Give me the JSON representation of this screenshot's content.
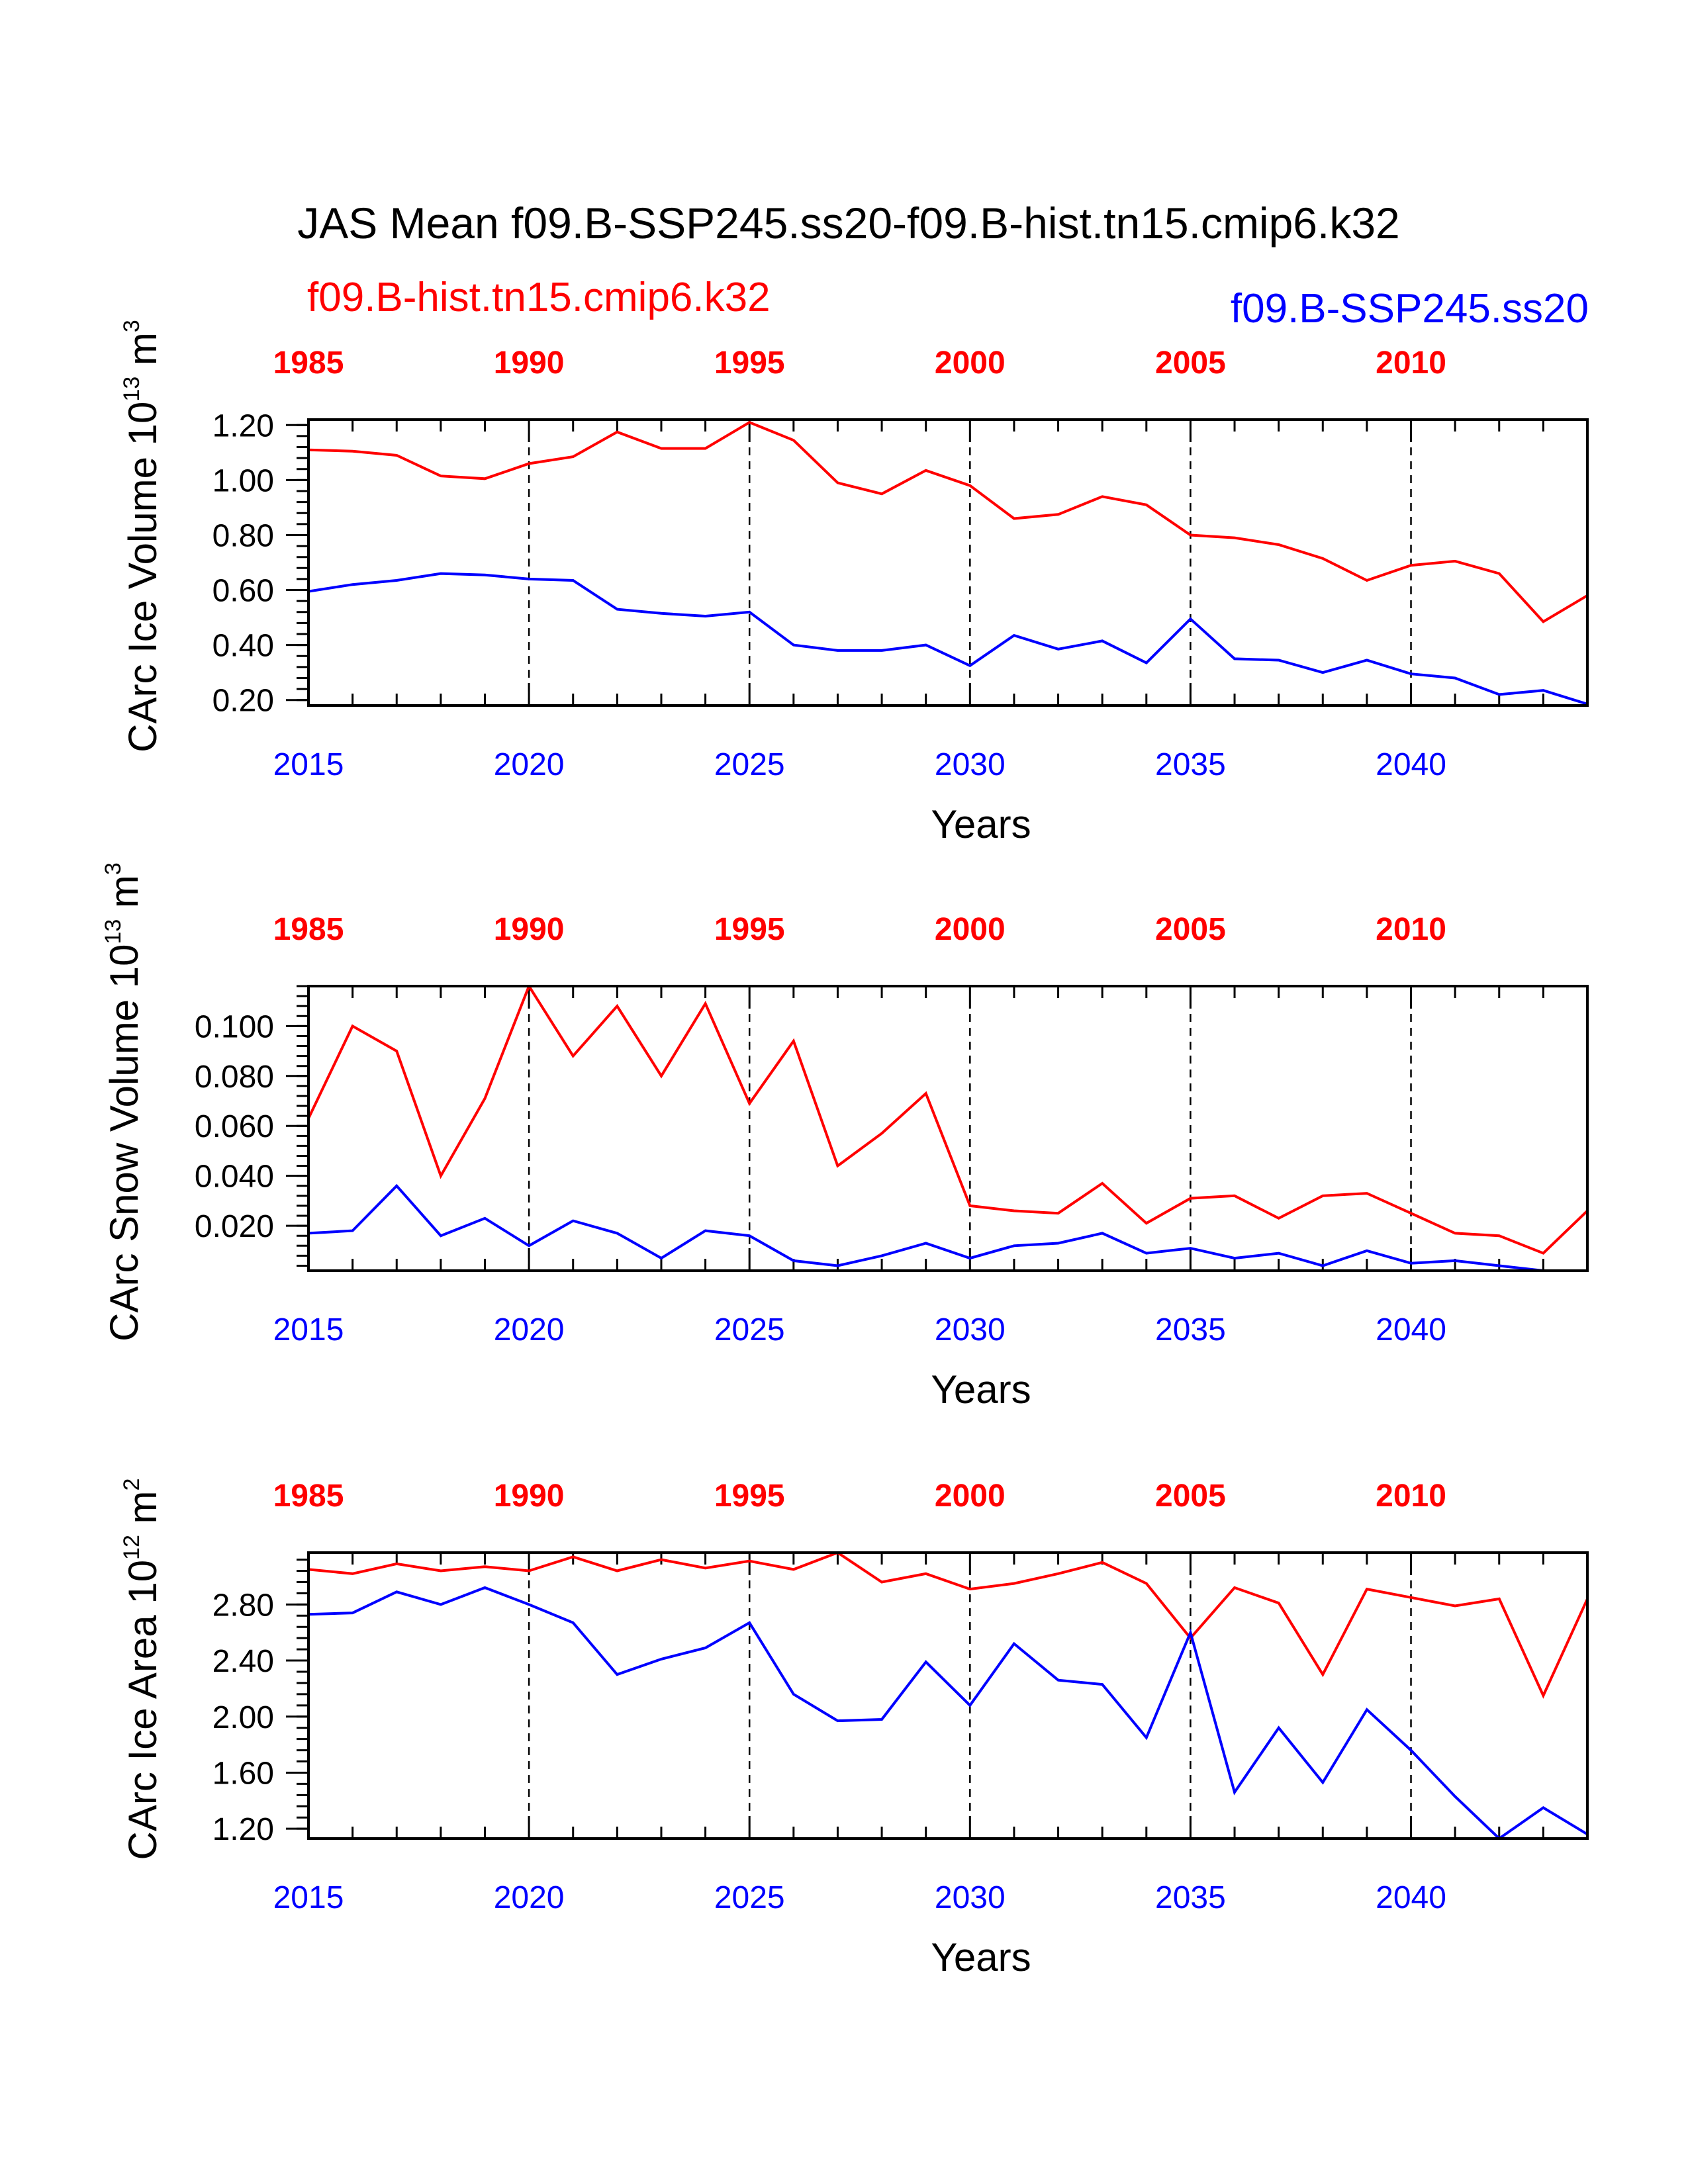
{
  "title": "JAS Mean f09.B-SSP245.ss20-f09.B-hist.tn15.cmip6.k32",
  "legend": {
    "red": "f09.B-hist.tn15.cmip6.k32",
    "blue": "f09.B-SSP245.ss20"
  },
  "colors": {
    "red": "#ff0000",
    "blue": "#0000ff",
    "axis": "#000000"
  },
  "chart_data": [
    {
      "type": "line",
      "ylabel": {
        "text": "CArc Ice Volume 10",
        "exp": "13",
        "unit": " m",
        "unit_exp": "3"
      },
      "xlabel": "Years",
      "xlim": [
        2015,
        2044
      ],
      "ylim": [
        0.18,
        1.22
      ],
      "yticks": [
        0.2,
        0.4,
        0.6,
        0.8,
        1.0,
        1.2
      ],
      "ytick_labels": [
        "0.20",
        "0.40",
        "0.60",
        "0.80",
        "1.00",
        "1.20"
      ],
      "yminor": 0.04,
      "bottom_ticks": [
        "2015",
        "2020",
        "2025",
        "2030",
        "2035",
        "2040"
      ],
      "top_ticks": [
        "1985",
        "1990",
        "1995",
        "2000",
        "2005",
        "2010"
      ],
      "grid": "dashed-vertical",
      "x": [
        2015,
        2016,
        2017,
        2018,
        2019,
        2020,
        2021,
        2022,
        2023,
        2024,
        2025,
        2026,
        2027,
        2028,
        2029,
        2030,
        2031,
        2032,
        2033,
        2034,
        2035,
        2036,
        2037,
        2038,
        2039,
        2040,
        2041,
        2042,
        2043,
        2044
      ],
      "series": [
        {
          "color": "red",
          "values": [
            1.11,
            1.105,
            1.09,
            1.015,
            1.005,
            1.06,
            1.085,
            1.175,
            1.115,
            1.115,
            1.21,
            1.145,
            0.99,
            0.95,
            1.035,
            0.98,
            0.86,
            0.875,
            0.94,
            0.91,
            0.8,
            0.79,
            0.765,
            0.715,
            0.635,
            0.69,
            0.705,
            0.66,
            0.485,
            0.58
          ]
        },
        {
          "color": "blue",
          "values": [
            0.595,
            0.62,
            0.635,
            0.66,
            0.655,
            0.64,
            0.635,
            0.53,
            0.515,
            0.505,
            0.52,
            0.4,
            0.38,
            0.38,
            0.4,
            0.325,
            0.435,
            0.385,
            0.415,
            0.335,
            0.495,
            0.35,
            0.345,
            0.3,
            0.345,
            0.295,
            0.28,
            0.22,
            0.235,
            0.185
          ]
        }
      ]
    },
    {
      "type": "line",
      "ylabel": {
        "text": "CArc Snow Volume 10",
        "exp": "13",
        "unit": " m",
        "unit_exp": "3"
      },
      "xlabel": "Years",
      "xlim": [
        2015,
        2044
      ],
      "ylim": [
        0.002,
        0.116
      ],
      "yticks": [
        0.02,
        0.04,
        0.06,
        0.08,
        0.1
      ],
      "ytick_labels": [
        "0.020",
        "0.040",
        "0.060",
        "0.080",
        "0.100"
      ],
      "yminor": 0.004,
      "bottom_ticks": [
        "2015",
        "2020",
        "2025",
        "2030",
        "2035",
        "2040"
      ],
      "top_ticks": [
        "1985",
        "1990",
        "1995",
        "2000",
        "2005",
        "2010"
      ],
      "grid": "dashed-vertical",
      "x": [
        2015,
        2016,
        2017,
        2018,
        2019,
        2020,
        2021,
        2022,
        2023,
        2024,
        2025,
        2026,
        2027,
        2028,
        2029,
        2030,
        2031,
        2032,
        2033,
        2034,
        2035,
        2036,
        2037,
        2038,
        2039,
        2040,
        2041,
        2042,
        2043,
        2044
      ],
      "series": [
        {
          "color": "red",
          "values": [
            0.063,
            0.1,
            0.09,
            0.04,
            0.071,
            0.116,
            0.088,
            0.108,
            0.08,
            0.109,
            0.069,
            0.094,
            0.044,
            0.057,
            0.073,
            0.028,
            0.026,
            0.025,
            0.037,
            0.021,
            0.031,
            0.032,
            0.023,
            0.032,
            0.033,
            0.025,
            0.017,
            0.016,
            0.009,
            0.026
          ]
        },
        {
          "color": "blue",
          "values": [
            0.017,
            0.018,
            0.036,
            0.016,
            0.023,
            0.012,
            0.022,
            0.017,
            0.007,
            0.018,
            0.016,
            0.006,
            0.004,
            0.008,
            0.013,
            0.007,
            0.012,
            0.013,
            0.017,
            0.009,
            0.011,
            0.007,
            0.009,
            0.004,
            0.01,
            0.005,
            0.006,
            0.004,
            0.002,
            0.001
          ]
        }
      ]
    },
    {
      "type": "line",
      "ylabel": {
        "text": "CArc Ice Area 10",
        "exp": "12",
        "unit": " m",
        "unit_exp": "2"
      },
      "xlabel": "Years",
      "xlim": [
        2015,
        2044
      ],
      "ylim": [
        1.13,
        3.17
      ],
      "yticks": [
        1.2,
        1.6,
        2.0,
        2.4,
        2.8
      ],
      "ytick_labels": [
        "1.20",
        "1.60",
        "2.00",
        "2.40",
        "2.80"
      ],
      "yminor": 0.08,
      "bottom_ticks": [
        "2015",
        "2020",
        "2025",
        "2030",
        "2035",
        "2040"
      ],
      "top_ticks": [
        "1985",
        "1990",
        "1995",
        "2000",
        "2005",
        "2010"
      ],
      "grid": "dashed-vertical",
      "x": [
        2015,
        2016,
        2017,
        2018,
        2019,
        2020,
        2021,
        2022,
        2023,
        2024,
        2025,
        2026,
        2027,
        2028,
        2029,
        2030,
        2031,
        2032,
        2033,
        2034,
        2035,
        2036,
        2037,
        2038,
        2039,
        2040,
        2041,
        2042,
        2043,
        2044
      ],
      "series": [
        {
          "color": "red",
          "values": [
            3.05,
            3.02,
            3.09,
            3.04,
            3.07,
            3.04,
            3.14,
            3.04,
            3.12,
            3.06,
            3.11,
            3.05,
            3.17,
            2.96,
            3.02,
            2.91,
            2.95,
            3.02,
            3.1,
            2.95,
            2.56,
            2.92,
            2.81,
            2.3,
            2.91,
            2.85,
            2.79,
            2.84,
            2.15,
            2.84
          ]
        },
        {
          "color": "blue",
          "values": [
            2.73,
            2.74,
            2.89,
            2.8,
            2.92,
            2.8,
            2.67,
            2.3,
            2.41,
            2.49,
            2.67,
            2.16,
            1.97,
            1.98,
            2.39,
            2.08,
            2.52,
            2.26,
            2.23,
            1.85,
            2.6,
            1.46,
            1.92,
            1.53,
            2.05,
            1.76,
            1.43,
            1.13,
            1.35,
            1.16
          ]
        }
      ]
    }
  ]
}
